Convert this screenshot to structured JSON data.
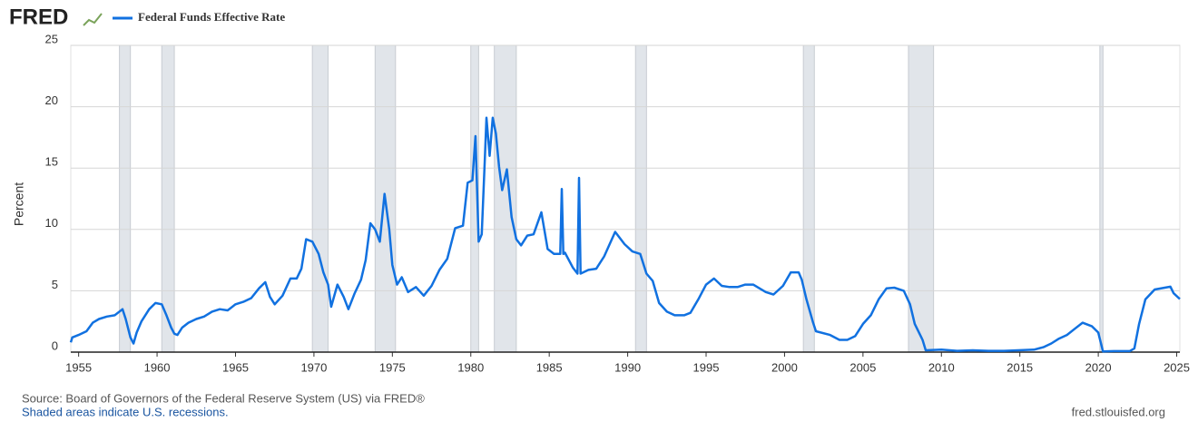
{
  "logo": "FRED",
  "footer": {
    "source": "Source: Board of Governors of the Federal Reserve System (US) via FRED®",
    "note": "Shaded areas indicate U.S. recessions.",
    "site": "fred.stlouisfed.org"
  },
  "chart_data": {
    "type": "line",
    "ylabel": "Percent",
    "xlim": [
      1954.5,
      2025.2
    ],
    "ylim": [
      0,
      25
    ],
    "xticks": [
      1955,
      1960,
      1965,
      1970,
      1975,
      1980,
      1985,
      1990,
      1995,
      2000,
      2005,
      2010,
      2015,
      2020,
      2025
    ],
    "yticks": [
      0,
      5,
      10,
      15,
      20,
      25
    ],
    "grid": true,
    "recessions": [
      [
        1957.6,
        1958.3
      ],
      [
        1960.3,
        1961.1
      ],
      [
        1969.9,
        1970.9
      ],
      [
        1973.9,
        1975.2
      ],
      [
        1980.0,
        1980.5
      ],
      [
        1981.5,
        1982.9
      ],
      [
        1990.5,
        1991.2
      ],
      [
        2001.2,
        2001.9
      ],
      [
        2007.9,
        2009.5
      ],
      [
        2020.1,
        2020.3
      ]
    ],
    "x": [
      1954.5,
      1954.6,
      1955.0,
      1955.5,
      1955.9,
      1956.3,
      1956.8,
      1957.3,
      1957.8,
      1958.0,
      1958.3,
      1958.5,
      1958.7,
      1959.0,
      1959.5,
      1959.9,
      1960.3,
      1960.6,
      1960.9,
      1961.1,
      1961.3,
      1961.6,
      1962.0,
      1962.5,
      1963.0,
      1963.5,
      1964.0,
      1964.5,
      1965.0,
      1965.5,
      1966.0,
      1966.5,
      1966.9,
      1967.2,
      1967.5,
      1968.0,
      1968.5,
      1968.9,
      1969.2,
      1969.5,
      1969.9,
      1970.3,
      1970.6,
      1970.9,
      1971.1,
      1971.5,
      1971.9,
      1972.2,
      1972.6,
      1973.0,
      1973.3,
      1973.6,
      1973.9,
      1974.2,
      1974.5,
      1974.8,
      1975.0,
      1975.3,
      1975.6,
      1976.0,
      1976.5,
      1977.0,
      1977.5,
      1978.0,
      1978.5,
      1979.0,
      1979.5,
      1979.8,
      1980.1,
      1980.3,
      1980.5,
      1980.7,
      1980.9,
      1981.0,
      1981.2,
      1981.4,
      1981.6,
      1981.8,
      1982.0,
      1982.3,
      1982.6,
      1982.9,
      1983.2,
      1983.6,
      1984.0,
      1984.5,
      1984.9,
      1985.3,
      1985.7,
      1985.8,
      1985.9,
      1986.0,
      1986.5,
      1986.8,
      1986.9,
      1987.0,
      1987.5,
      1988.0,
      1988.5,
      1989.2,
      1989.8,
      1990.3,
      1990.8,
      1991.2,
      1991.6,
      1992.0,
      1992.5,
      1993.0,
      1993.6,
      1994.0,
      1994.5,
      1995.0,
      1995.5,
      1996.0,
      1996.5,
      1997.0,
      1997.5,
      1998.0,
      1998.8,
      1999.3,
      1999.9,
      2000.4,
      2000.9,
      2001.1,
      2001.4,
      2001.8,
      2002.0,
      2002.9,
      2003.5,
      2004.0,
      2004.5,
      2005.0,
      2005.5,
      2006.0,
      2006.5,
      2007.0,
      2007.6,
      2008.0,
      2008.3,
      2008.8,
      2009.0,
      2010.0,
      2011.0,
      2012.0,
      2013.0,
      2014.0,
      2015.9,
      2016.5,
      2017.0,
      2017.5,
      2018.0,
      2018.5,
      2019.0,
      2019.6,
      2020.0,
      2020.3,
      2021.0,
      2022.0,
      2022.3,
      2022.6,
      2023.0,
      2023.6,
      2024.6,
      2024.8,
      2025.2
    ],
    "series": [
      {
        "name": "Federal Funds Effective Rate",
        "color": "#1171e0",
        "values": [
          0.8,
          1.2,
          1.4,
          1.7,
          2.4,
          2.7,
          2.9,
          3.0,
          3.5,
          2.7,
          1.2,
          0.7,
          1.6,
          2.5,
          3.5,
          4.0,
          3.9,
          3.0,
          2.0,
          1.5,
          1.4,
          2.0,
          2.4,
          2.7,
          2.9,
          3.3,
          3.5,
          3.4,
          3.9,
          4.1,
          4.4,
          5.2,
          5.7,
          4.5,
          3.9,
          4.6,
          6.0,
          6.0,
          6.8,
          9.2,
          9.0,
          8.0,
          6.5,
          5.5,
          3.7,
          5.5,
          4.5,
          3.5,
          4.8,
          5.9,
          7.5,
          10.5,
          10.0,
          9.0,
          12.9,
          10.0,
          7.1,
          5.5,
          6.1,
          4.9,
          5.3,
          4.6,
          5.4,
          6.7,
          7.6,
          10.1,
          10.3,
          13.8,
          14.0,
          17.6,
          9.0,
          9.6,
          15.9,
          19.1,
          16.0,
          19.1,
          17.8,
          15.1,
          13.2,
          14.9,
          11.0,
          9.2,
          8.7,
          9.5,
          9.6,
          11.4,
          8.4,
          8.0,
          8.0,
          13.3,
          8.0,
          8.1,
          6.9,
          6.4,
          14.2,
          6.4,
          6.7,
          6.8,
          7.8,
          9.8,
          8.8,
          8.2,
          8.0,
          6.4,
          5.8,
          4.0,
          3.3,
          3.0,
          3.0,
          3.2,
          4.3,
          5.5,
          6.0,
          5.4,
          5.3,
          5.3,
          5.5,
          5.5,
          4.9,
          4.7,
          5.4,
          6.5,
          6.5,
          5.9,
          4.3,
          2.5,
          1.7,
          1.4,
          1.0,
          1.0,
          1.3,
          2.3,
          3.0,
          4.3,
          5.2,
          5.25,
          5.0,
          3.9,
          2.3,
          1.0,
          0.15,
          0.2,
          0.1,
          0.15,
          0.1,
          0.1,
          0.2,
          0.4,
          0.7,
          1.1,
          1.4,
          1.9,
          2.4,
          2.1,
          1.6,
          0.05,
          0.08,
          0.08,
          0.3,
          2.3,
          4.3,
          5.1,
          5.33,
          4.8,
          4.33
        ]
      }
    ]
  }
}
